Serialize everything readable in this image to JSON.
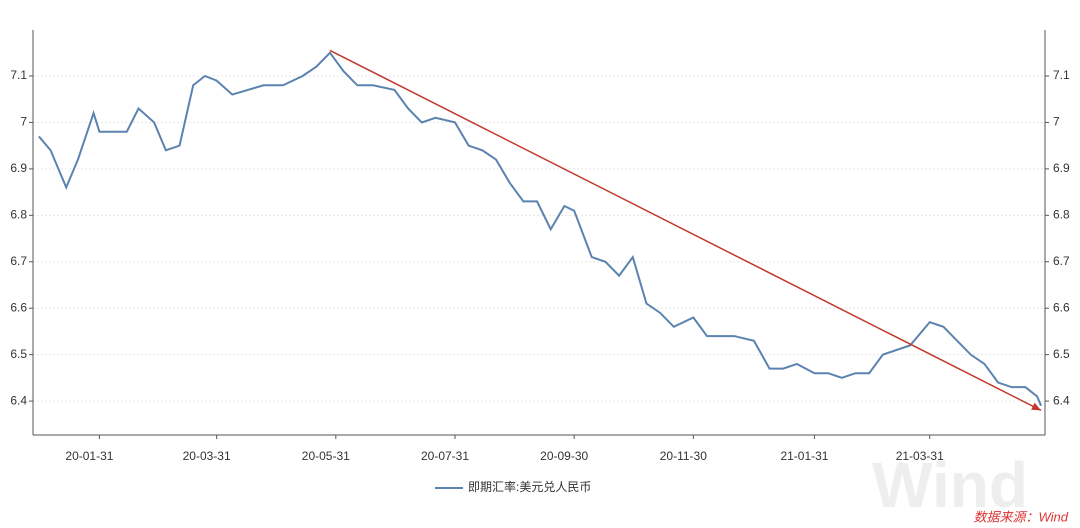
{
  "chart_data": {
    "type": "line",
    "x": [
      "19-12-31",
      "20-01-06",
      "20-01-14",
      "20-01-20",
      "20-01-28",
      "20-01-31",
      "20-02-05",
      "20-02-14",
      "20-02-20",
      "20-02-28",
      "20-03-05",
      "20-03-12",
      "20-03-19",
      "20-03-25",
      "20-03-31",
      "20-04-08",
      "20-04-16",
      "20-04-24",
      "20-05-04",
      "20-05-14",
      "20-05-21",
      "20-05-28",
      "20-06-04",
      "20-06-11",
      "20-06-19",
      "20-06-30",
      "20-07-07",
      "20-07-14",
      "20-07-21",
      "20-07-31",
      "20-08-07",
      "20-08-14",
      "20-08-21",
      "20-08-28",
      "20-09-04",
      "20-09-11",
      "20-09-18",
      "20-09-25",
      "20-09-30",
      "20-10-09",
      "20-10-16",
      "20-10-23",
      "20-10-30",
      "20-11-06",
      "20-11-13",
      "20-11-20",
      "20-11-30",
      "20-12-07",
      "20-12-14",
      "20-12-21",
      "20-12-31",
      "21-01-08",
      "21-01-15",
      "21-01-22",
      "21-01-31",
      "21-02-07",
      "21-02-14",
      "21-02-21",
      "21-02-28",
      "21-03-07",
      "21-03-14",
      "21-03-21",
      "21-03-31",
      "21-04-07",
      "21-04-14",
      "21-04-21",
      "21-04-28",
      "21-05-05",
      "21-05-12",
      "21-05-19",
      "21-05-25",
      "21-05-27"
    ],
    "series": [
      {
        "name": "即期汇率:美元兑人民币",
        "color": "#5b83b0",
        "values": [
          6.97,
          6.94,
          6.86,
          6.92,
          7.02,
          6.98,
          6.98,
          6.98,
          7.03,
          7.0,
          6.94,
          6.95,
          7.08,
          7.1,
          7.09,
          7.06,
          7.07,
          7.08,
          7.08,
          7.1,
          7.12,
          7.15,
          7.11,
          7.08,
          7.08,
          7.07,
          7.03,
          7.0,
          7.01,
          7.0,
          6.95,
          6.94,
          6.92,
          6.87,
          6.83,
          6.83,
          6.77,
          6.82,
          6.81,
          6.71,
          6.7,
          6.67,
          6.71,
          6.61,
          6.59,
          6.56,
          6.58,
          6.54,
          6.54,
          6.54,
          6.53,
          6.47,
          6.47,
          6.48,
          6.46,
          6.46,
          6.45,
          6.46,
          6.46,
          6.5,
          6.51,
          6.52,
          6.57,
          6.56,
          6.53,
          6.5,
          6.48,
          6.44,
          6.43,
          6.43,
          6.41,
          6.39
        ]
      }
    ],
    "trend_line": {
      "x": [
        "20-05-28",
        "21-05-27"
      ],
      "values": [
        7.155,
        6.38
      ],
      "color": "#c0392b"
    },
    "xlim": [
      "19-12-28",
      "21-05-29"
    ],
    "xticks": [
      "20-01-31",
      "20-03-31",
      "20-05-31",
      "20-07-31",
      "20-09-30",
      "20-11-30",
      "21-01-31",
      "21-03-31"
    ],
    "ylim": [
      6.327,
      7.199
    ],
    "yticks": [
      6.4,
      6.5,
      6.6,
      6.7,
      6.8,
      6.9,
      7.0,
      7.1
    ],
    "grid": true,
    "source": "数据来源：Wind",
    "watermark": "Wind"
  }
}
